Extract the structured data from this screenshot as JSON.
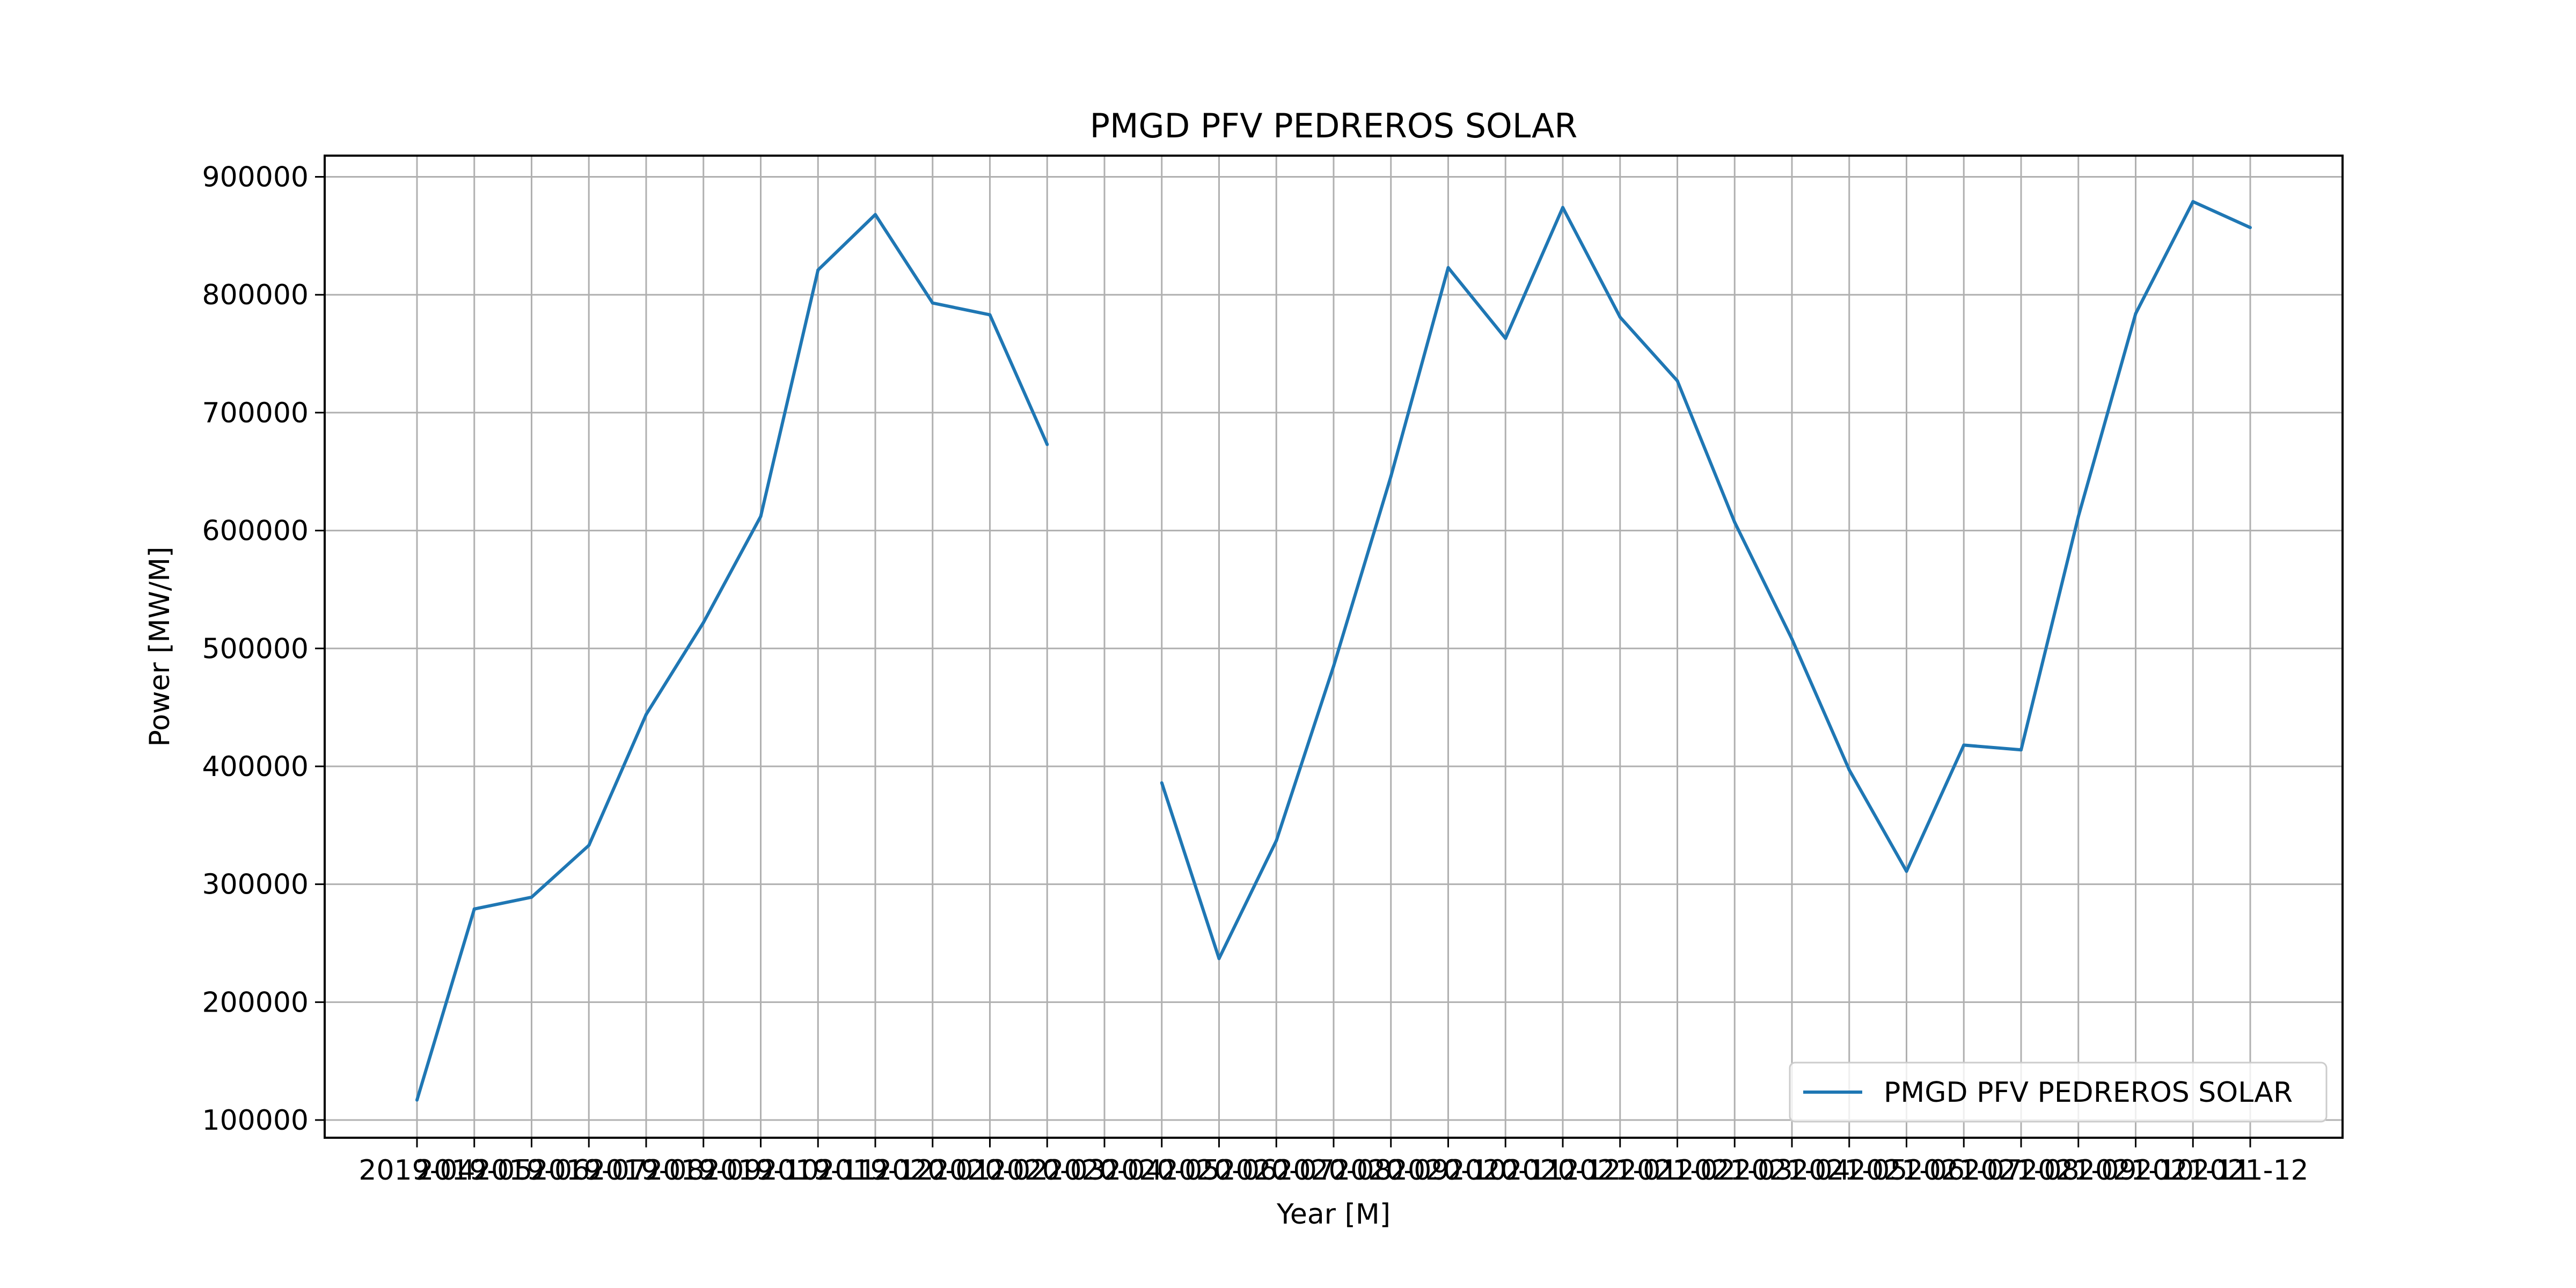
{
  "chart_data": {
    "type": "line",
    "title": "PMGD PFV PEDREROS SOLAR",
    "xlabel": "Year [M]",
    "ylabel": "Power [MW/M]",
    "x": [
      "2019-04",
      "2019-05",
      "2019-06",
      "2019-07",
      "2019-08",
      "2019-09",
      "2019-10",
      "2019-11",
      "2019-12",
      "2020-01",
      "2020-02",
      "2020-03",
      "2020-04",
      "2020-05",
      "2020-06",
      "2020-07",
      "2020-08",
      "2020-09",
      "2020-10",
      "2020-11",
      "2020-12",
      "2021-01",
      "2021-02",
      "2021-03",
      "2021-04",
      "2021-05",
      "2021-06",
      "2021-07",
      "2021-08",
      "2021-09",
      "2021-10",
      "2021-11",
      "2021-12"
    ],
    "series": [
      {
        "name": "PMGD PFV PEDREROS SOLAR",
        "color": "#1f77b4",
        "values": [
          117000,
          279000,
          289000,
          333000,
          444000,
          522000,
          612000,
          821000,
          868000,
          793000,
          783000,
          673000,
          null,
          386000,
          237000,
          337000,
          485000,
          646000,
          823000,
          763000,
          874000,
          781000,
          727000,
          607000,
          508000,
          397000,
          311000,
          418000,
          414000,
          612000,
          784000,
          879000,
          857000
        ]
      }
    ],
    "ylim": [
      85000,
      918000
    ],
    "yticks": [
      100000,
      200000,
      300000,
      400000,
      500000,
      600000,
      700000,
      800000,
      900000
    ],
    "ytick_labels": [
      "100000",
      "200000",
      "300000",
      "400000",
      "500000",
      "600000",
      "700000",
      "800000",
      "900000"
    ],
    "xtick_labels": [
      "2019-04",
      "2019-05",
      "2019-06",
      "2019-07",
      "2019-08",
      "2019-09",
      "2019-10",
      "2019-11",
      "2019-12",
      "2020-01",
      "2020-02",
      "2020-03",
      "2020-04",
      "2020-05",
      "2020-06",
      "2020-07",
      "2020-08",
      "2020-09",
      "2020-10",
      "2020-11",
      "2020-12",
      "2021-01",
      "2021-02",
      "2021-03",
      "2021-04",
      "2021-05",
      "2021-06",
      "2021-07",
      "2021-08",
      "2021-09",
      "2021-10",
      "2021-11",
      "2021-12"
    ],
    "grid": true,
    "legend": "lower-right"
  }
}
